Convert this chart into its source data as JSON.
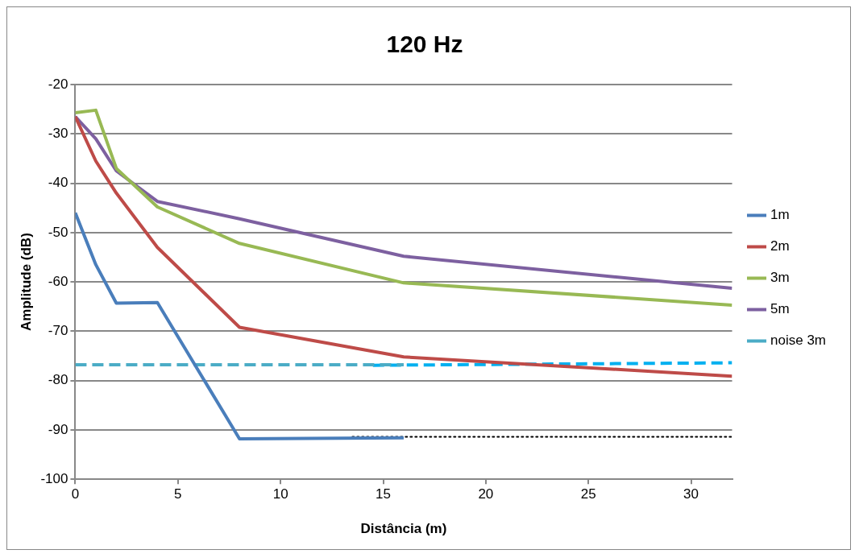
{
  "chart_data": {
    "type": "line",
    "title": "120 Hz",
    "xlabel": "Distância (m)",
    "ylabel": "Amplitude (dB)",
    "xlim": [
      0,
      32
    ],
    "xticks": [
      0,
      5,
      10,
      15,
      20,
      25,
      30
    ],
    "ylim": [
      -100,
      -20
    ],
    "yticks": [
      -100,
      -90,
      -80,
      -70,
      -60,
      -50,
      -40,
      -30,
      -20
    ],
    "grid": "y",
    "legend": "right",
    "marker": "none",
    "series": [
      {
        "name": "1m",
        "color": "#4a7ebb",
        "x": [
          0,
          1,
          2,
          4,
          8,
          16
        ],
        "values": [
          -46,
          -56.5,
          -64.3,
          -64.2,
          -91.8,
          -91.6
        ]
      },
      {
        "name": "2m",
        "color": "#be4b48",
        "x": [
          0,
          1,
          2,
          4,
          8,
          16,
          32
        ],
        "values": [
          -26.5,
          -35.5,
          -42,
          -53,
          -69.2,
          -75.2,
          -79.1
        ]
      },
      {
        "name": "3m",
        "color": "#98b954",
        "x": [
          0,
          1,
          2,
          4,
          8,
          16,
          32
        ],
        "values": [
          -25.7,
          -25.2,
          -37,
          -44.8,
          -52.2,
          -60.2,
          -64.7
        ]
      },
      {
        "name": "5m",
        "color": "#7d60a0",
        "x": [
          0,
          1,
          2,
          4,
          8,
          16,
          32
        ],
        "values": [
          -26.5,
          -31,
          -37.5,
          -43.7,
          -47.2,
          -54.8,
          -61.3
        ]
      },
      {
        "name": "noise 3m",
        "color": "#4bacc6",
        "line_style": "dashed",
        "x": [
          0,
          16
        ],
        "values": [
          -76.8,
          -76.8
        ]
      },
      {
        "color": "#00b0f0",
        "line_style": "dashed",
        "x": [
          14.5,
          32
        ],
        "values": [
          -76.9,
          -76.4
        ]
      },
      {
        "color": "#000000",
        "line_style": "dotted",
        "x": [
          13.5,
          32
        ],
        "values": [
          -91.4,
          -91.4
        ]
      }
    ]
  }
}
